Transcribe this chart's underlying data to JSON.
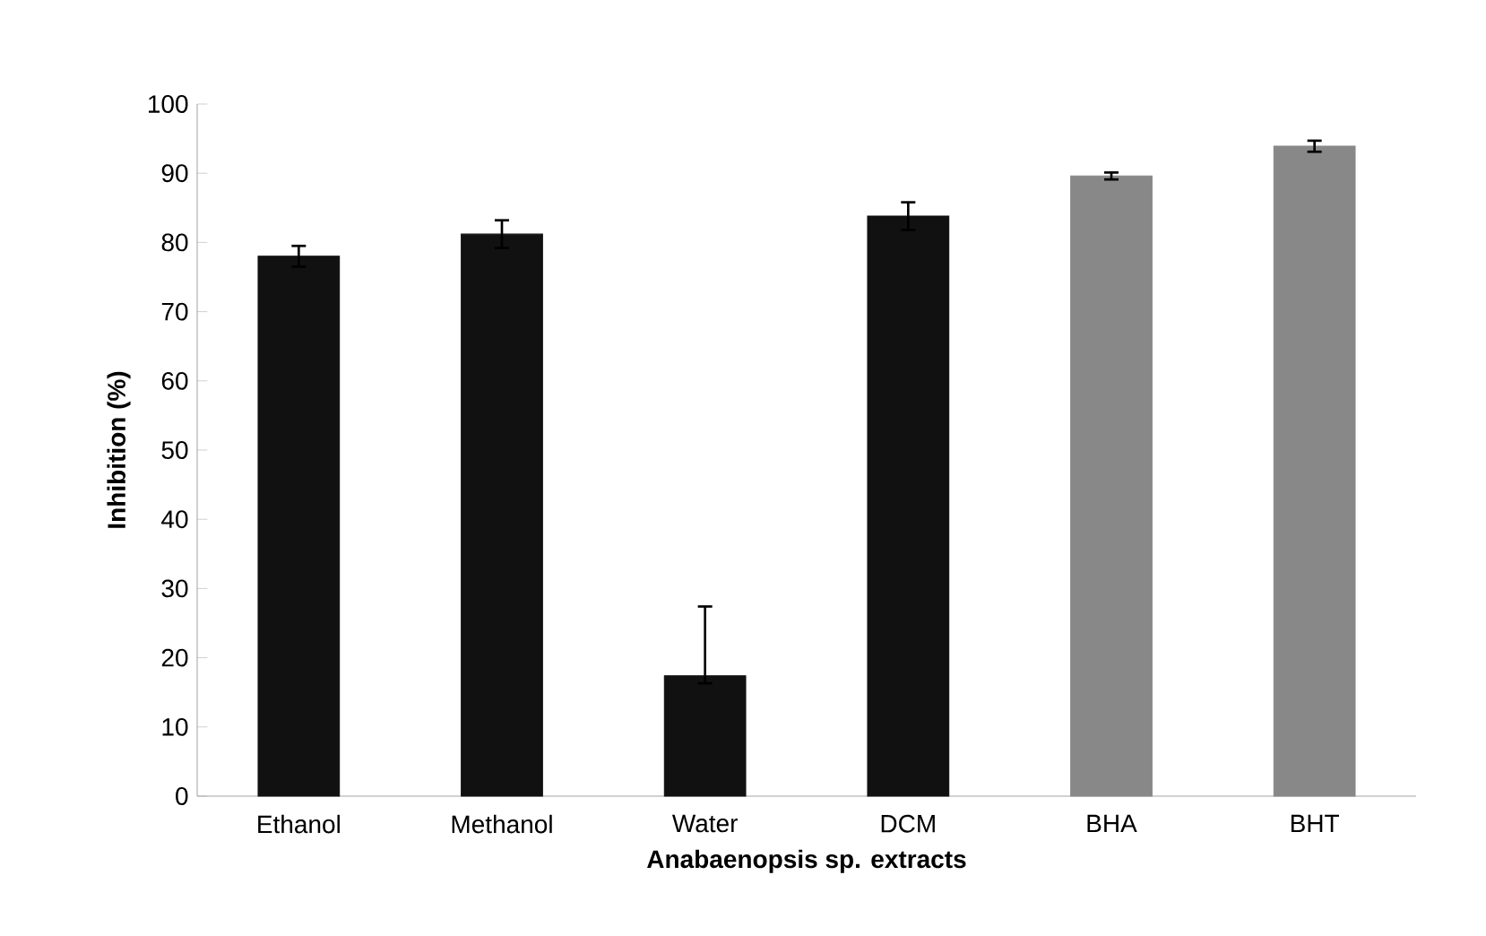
{
  "chart_data": {
    "type": "bar",
    "xlabel": "Anabaenopsis sp. extracts",
    "ylabel": "Inhibition (%)",
    "categories": [
      "Ethanol",
      "Methanol",
      "Water",
      "DCM",
      "BHA",
      "BHT"
    ],
    "values": [
      78.0,
      81.2,
      17.4,
      83.8,
      89.6,
      93.9
    ],
    "errors": [
      1.5,
      2.0,
      [
        16.3,
        27.4
      ],
      2.0,
      0.5,
      0.8
    ],
    "colors": [
      "#111111",
      "#111111",
      "#111111",
      "#111111",
      "#888888",
      "#888888"
    ],
    "ylim": [
      0,
      100
    ],
    "yticks": [
      0,
      10,
      20,
      30,
      40,
      50,
      60,
      70,
      80,
      90,
      100
    ],
    "grid": false
  }
}
